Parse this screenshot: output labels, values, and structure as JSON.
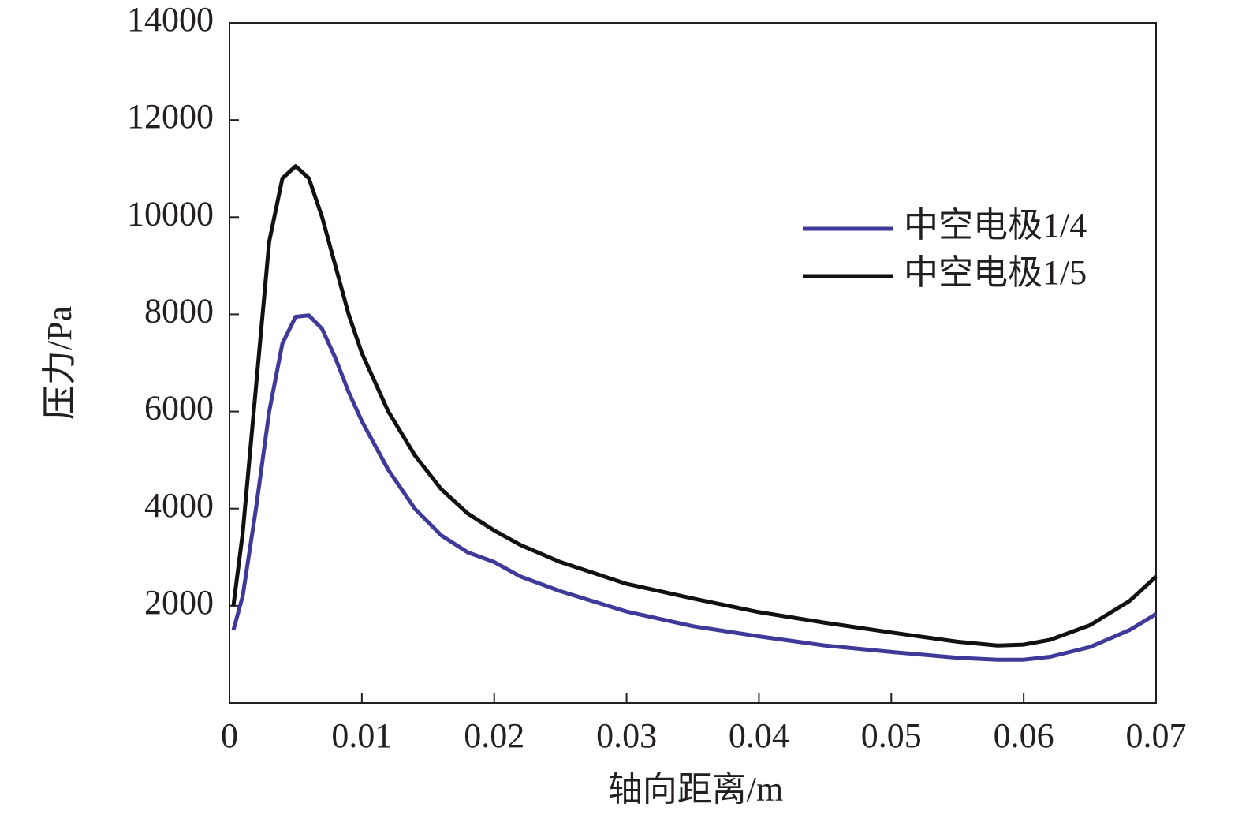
{
  "chart_data": {
    "type": "line",
    "x_label": "轴向距离/m",
    "y_label": "压力/Pa",
    "xlim": [
      0,
      0.07
    ],
    "xticks": [
      0,
      0.01,
      0.02,
      0.03,
      0.04,
      0.05,
      0.06,
      0.07
    ],
    "ylim": [
      0,
      14000
    ],
    "yticks": [
      2000,
      4000,
      6000,
      8000,
      10000,
      12000,
      14000
    ],
    "grid": false,
    "legend": "upper right",
    "x": [
      0.0003,
      0.001,
      0.002,
      0.003,
      0.004,
      0.005,
      0.006,
      0.007,
      0.008,
      0.009,
      0.01,
      0.012,
      0.014,
      0.016,
      0.018,
      0.02,
      0.022,
      0.025,
      0.03,
      0.035,
      0.04,
      0.045,
      0.05,
      0.055,
      0.058,
      0.06,
      0.062,
      0.065,
      0.068,
      0.07
    ],
    "series": [
      {
        "name": "中空电极1/4",
        "color": "#3f3a9a",
        "values": [
          1500,
          2200,
          4000,
          6000,
          7400,
          7950,
          7980,
          7700,
          7100,
          6400,
          5800,
          4800,
          4000,
          3450,
          3100,
          2900,
          2600,
          2300,
          1880,
          1580,
          1370,
          1180,
          1050,
          930,
          890,
          890,
          950,
          1150,
          1500,
          1830
        ]
      },
      {
        "name": "中空电极1/5",
        "color": "#111111",
        "values": [
          2000,
          3500,
          6500,
          9500,
          10800,
          11050,
          10800,
          10000,
          9000,
          8000,
          7200,
          6000,
          5100,
          4400,
          3900,
          3550,
          3250,
          2900,
          2450,
          2150,
          1870,
          1650,
          1450,
          1260,
          1180,
          1200,
          1300,
          1600,
          2100,
          2600
        ]
      }
    ]
  }
}
